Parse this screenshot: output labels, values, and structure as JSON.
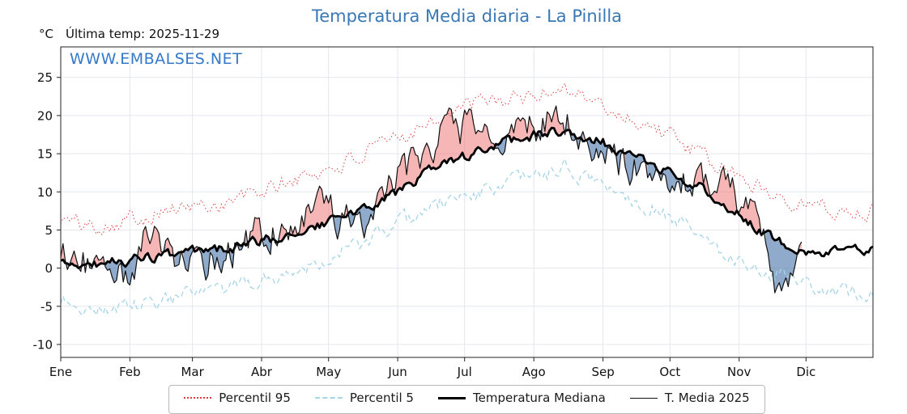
{
  "page": {
    "title": "Temperatura Media diaria - La Pinilla",
    "unit_label": "°C",
    "last_temp_label": "Última temp: 2025-11-29",
    "watermark": "WWW.EMBALSES.NET"
  },
  "colors": {
    "title": "#3a78b5",
    "watermark": "#3579c8",
    "p95": "#dd3b3b",
    "p5": "#a6d5e8",
    "median": "#000000",
    "t2025": "#111111",
    "fill_above": "rgba(240,110,110,0.5)",
    "fill_below": "rgba(85,125,175,0.65)",
    "grid": "#e4e7ee",
    "spine": "#222222"
  },
  "legend": {
    "items": [
      {
        "id": "p95",
        "label": "Percentil 95"
      },
      {
        "id": "p5",
        "label": "Percentil 5"
      },
      {
        "id": "median",
        "label": "Temperatura Mediana"
      },
      {
        "id": "t2025",
        "label": "T. Media 2025"
      }
    ]
  },
  "chart_data": {
    "type": "line",
    "title": "Temperatura Media diaria - La Pinilla",
    "ylabel": "°C",
    "ylim": [
      -11.7,
      29
    ],
    "yticks": [
      -10,
      -5,
      0,
      5,
      10,
      15,
      20,
      25
    ],
    "x_months": [
      "Ene",
      "Feb",
      "Mar",
      "Abr",
      "May",
      "Jun",
      "Jul",
      "Ago",
      "Sep",
      "Oct",
      "Nov",
      "Dic"
    ],
    "month_start_days": [
      0,
      31,
      59,
      90,
      120,
      151,
      181,
      212,
      243,
      273,
      304,
      334
    ],
    "days_in_year": 365,
    "grid": true,
    "legend_position": "bottom",
    "series": [
      {
        "id": "p95",
        "name": "Percentil 95",
        "style": "dotted-red",
        "days": [
          0,
          14,
          31,
          45,
          59,
          73,
          90,
          104,
          120,
          134,
          151,
          165,
          181,
          195,
          212,
          226,
          243,
          257,
          273,
          287,
          304,
          318,
          334,
          348,
          364
        ],
        "values": [
          6.5,
          5.5,
          6.5,
          7.5,
          8.0,
          8.5,
          10.0,
          11.5,
          13.0,
          14.5,
          17.0,
          19.5,
          21.0,
          22.0,
          22.5,
          24.0,
          21.0,
          19.5,
          17.5,
          14.5,
          12.0,
          10.0,
          8.5,
          7.5,
          7.5
        ],
        "noise": 1.2,
        "seed": 101
      },
      {
        "id": "p5",
        "name": "Percentil 5",
        "style": "dashed-lightblue",
        "days": [
          0,
          14,
          31,
          45,
          59,
          73,
          90,
          104,
          120,
          134,
          151,
          165,
          181,
          195,
          212,
          226,
          243,
          257,
          273,
          287,
          304,
          318,
          334,
          348,
          364
        ],
        "values": [
          -4.0,
          -5.5,
          -5.0,
          -4.5,
          -3.5,
          -3.0,
          -1.5,
          -0.5,
          1.5,
          3.0,
          5.5,
          8.0,
          9.5,
          10.5,
          12.0,
          13.0,
          11.0,
          9.0,
          7.0,
          4.0,
          1.0,
          -0.5,
          -2.0,
          -3.5,
          -3.0
        ],
        "noise": 1.1,
        "seed": 202
      },
      {
        "id": "median",
        "name": "Temperatura Mediana",
        "style": "solid-black-thick",
        "days": [
          0,
          14,
          31,
          45,
          59,
          73,
          90,
          104,
          120,
          134,
          151,
          165,
          181,
          195,
          212,
          226,
          243,
          257,
          273,
          287,
          304,
          318,
          334,
          348,
          364
        ],
        "values": [
          0.5,
          0.5,
          1.0,
          1.5,
          2.0,
          2.5,
          3.5,
          4.5,
          6.0,
          7.5,
          10.0,
          12.5,
          14.5,
          16.0,
          17.5,
          18.0,
          16.5,
          14.5,
          12.5,
          10.5,
          7.0,
          4.0,
          2.5,
          2.0,
          2.5
        ],
        "noise": 0.7,
        "seed": 303
      },
      {
        "id": "t2025",
        "name": "T. Media 2025",
        "style": "solid-black-thin",
        "days": [
          0,
          14,
          31,
          38,
          45,
          59,
          73,
          90,
          104,
          120,
          134,
          151,
          165,
          181,
          195,
          212,
          226,
          243,
          257,
          273,
          287,
          304,
          312,
          320,
          326,
          334
        ],
        "values": [
          2.0,
          0.5,
          -1.5,
          3.5,
          2.5,
          0.0,
          2.0,
          4.5,
          6.5,
          7.5,
          5.5,
          11.5,
          16.0,
          18.5,
          15.5,
          19.0,
          19.5,
          14.0,
          13.5,
          11.5,
          12.0,
          9.0,
          6.0,
          -2.0,
          -3.0,
          2.0
        ],
        "noise": 2.6,
        "seed": 404,
        "end_day": 332
      }
    ]
  }
}
